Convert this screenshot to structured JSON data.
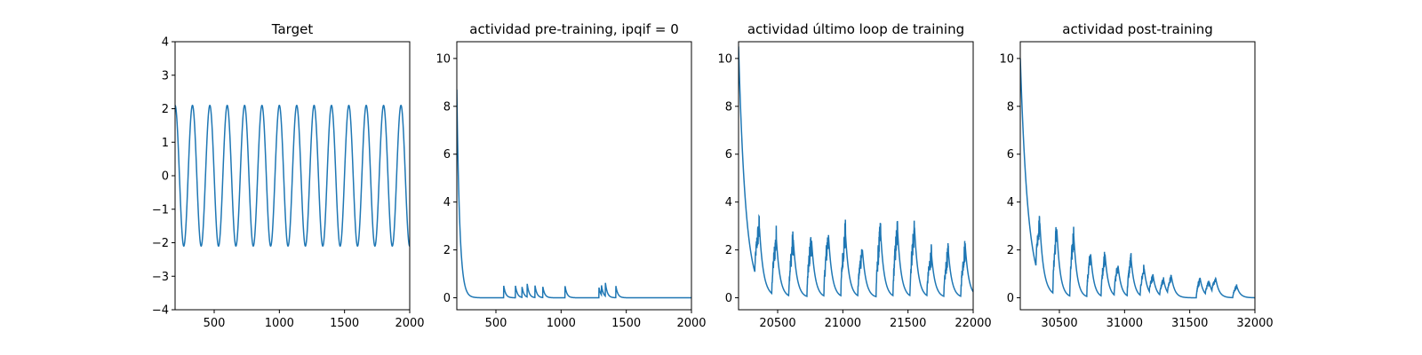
{
  "chart_data": [
    {
      "type": "line",
      "title": "Target",
      "xlim": [
        200,
        2000
      ],
      "ylim": [
        -4,
        4
      ],
      "xticks": [
        500,
        1000,
        1500,
        2000
      ],
      "yticks": [
        -4,
        -3,
        -2,
        -1,
        0,
        1,
        2,
        3,
        4
      ],
      "xtick_labels": [
        "500",
        "1000",
        "1500",
        "2000"
      ],
      "ytick_labels": [
        "−4",
        "−3",
        "−2",
        "−1",
        "0",
        "1",
        "2",
        "3",
        "4"
      ],
      "series": [
        {
          "color": "#1f77b4",
          "function": "sine",
          "amplitude": 2.1,
          "period": 133.3,
          "phase_x": 200,
          "phase_value": 2.1,
          "x_range": [
            200,
            2000
          ]
        }
      ]
    },
    {
      "type": "line",
      "title": "actividad pre-training, ipqif = 0",
      "xlim": [
        200,
        2000
      ],
      "ylim": [
        -0.5,
        10.7
      ],
      "xticks": [
        500,
        1000,
        1500,
        2000
      ],
      "yticks": [
        0,
        2,
        4,
        6,
        8,
        10
      ],
      "xtick_labels": [
        "500",
        "1000",
        "1500",
        "2000"
      ],
      "ytick_labels": [
        "0",
        "2",
        "4",
        "6",
        "8",
        "10"
      ],
      "series": [
        {
          "color": "#1f77b4",
          "initial_peak": 8.7,
          "decay_tau": 22,
          "spike_times": [
            560,
            650,
            700,
            740,
            800,
            860,
            1030,
            1290,
            1310,
            1340,
            1420
          ],
          "spike_heights": [
            0.5,
            0.5,
            0.45,
            0.55,
            0.5,
            0.45,
            0.5,
            0.45,
            0.4,
            0.55,
            0.5
          ],
          "spike_tau": 15,
          "baseline": 0,
          "x_range": [
            200,
            2000
          ]
        }
      ]
    },
    {
      "type": "line",
      "title": "actividad último loop de training",
      "xlim": [
        20200,
        22000
      ],
      "ylim": [
        -0.5,
        10.7
      ],
      "xticks": [
        20500,
        21000,
        21500,
        22000
      ],
      "yticks": [
        0,
        2,
        4,
        6,
        8,
        10
      ],
      "xtick_labels": [
        "20500",
        "21000",
        "21500",
        "22000"
      ],
      "ytick_labels": [
        "0",
        "2",
        "4",
        "6",
        "8",
        "10"
      ],
      "series": [
        {
          "color": "#1f77b4",
          "initial_peak": 10.5,
          "decay_tau": 55,
          "burst_times": [
            20360,
            20490,
            20620,
            20760,
            20890,
            21020,
            21150,
            21290,
            21420,
            21550,
            21680,
            21810,
            21940
          ],
          "burst_heights": [
            2.4,
            2.4,
            2.4,
            2.4,
            2.6,
            2.7,
            2.0,
            2.7,
            2.8,
            2.9,
            1.8,
            1.9,
            2.1
          ],
          "burst_rise": 35,
          "burst_tau": 28,
          "noise": 0.18,
          "x_range": [
            20200,
            22000
          ]
        }
      ]
    },
    {
      "type": "line",
      "title": "actividad post-training",
      "xlim": [
        30200,
        32000
      ],
      "ylim": [
        -0.5,
        10.7
      ],
      "xticks": [
        30500,
        31000,
        31500,
        32000
      ],
      "yticks": [
        0,
        2,
        4,
        6,
        8,
        10
      ],
      "xtick_labels": [
        "30500",
        "31000",
        "31500",
        "32000"
      ],
      "ytick_labels": [
        "0",
        "2",
        "4",
        "6",
        "8",
        "10"
      ],
      "series": [
        {
          "color": "#1f77b4",
          "initial_peak": 10.0,
          "decay_tau": 60,
          "burst_times": [
            30350,
            30480,
            30610,
            30740,
            30850,
            30950,
            31050,
            31150,
            31220,
            31300,
            31360,
            31580,
            31650,
            31700,
            31860
          ],
          "burst_heights": [
            2.3,
            2.8,
            2.6,
            1.8,
            1.8,
            1.3,
            1.6,
            1.2,
            0.8,
            0.7,
            0.8,
            0.8,
            0.6,
            0.7,
            0.5
          ],
          "burst_rise": 30,
          "burst_tau": 26,
          "noise": 0.15,
          "x_range": [
            30200,
            32000
          ]
        }
      ]
    }
  ]
}
